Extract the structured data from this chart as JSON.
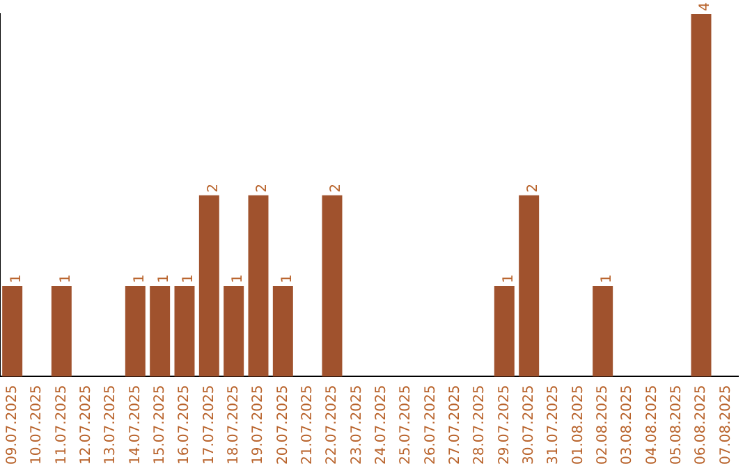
{
  "chart_data": {
    "type": "bar",
    "categories": [
      "09.07.2025",
      "10.07.2025",
      "11.07.2025",
      "12.07.2025",
      "13.07.2025",
      "14.07.2025",
      "15.07.2025",
      "16.07.2025",
      "17.07.2025",
      "18.07.2025",
      "19.07.2025",
      "20.07.2025",
      "21.07.2025",
      "22.07.2025",
      "23.07.2025",
      "24.07.2025",
      "25.07.2025",
      "26.07.2025",
      "27.07.2025",
      "28.07.2025",
      "29.07.2025",
      "30.07.2025",
      "31.07.2025",
      "01.08.2025",
      "02.08.2025",
      "03.08.2025",
      "04.08.2025",
      "05.08.2025",
      "06.08.2025",
      "07.08.2025"
    ],
    "values": [
      1,
      0,
      1,
      0,
      0,
      1,
      1,
      1,
      2,
      1,
      2,
      1,
      0,
      2,
      0,
      0,
      0,
      0,
      0,
      0,
      1,
      2,
      0,
      0,
      1,
      0,
      0,
      0,
      4,
      0
    ],
    "value_labels": [
      "1",
      null,
      "1",
      null,
      null,
      "1",
      "1",
      "1",
      "2",
      "1",
      "2",
      "1",
      null,
      "2",
      null,
      null,
      null,
      null,
      null,
      null,
      "1",
      "2",
      null,
      null,
      "1",
      null,
      null,
      null,
      "4",
      null
    ],
    "color": "#a0522d",
    "grid": false,
    "legend": false,
    "tick_labels": "x"
  }
}
